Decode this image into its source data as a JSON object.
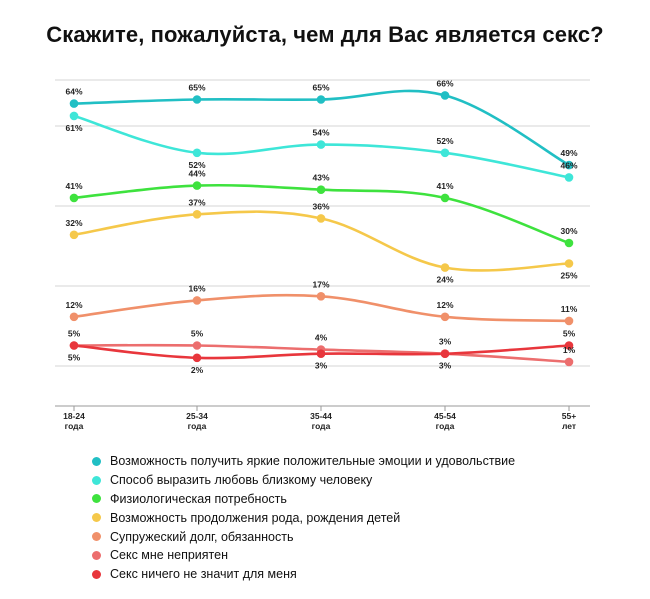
{
  "chart_data": {
    "type": "line",
    "title": "Скажите, пожалуйста, чем для Вас является секс?",
    "categories": [
      [
        "18-24",
        "года"
      ],
      [
        "25-34",
        "года"
      ],
      [
        "35-44",
        "года"
      ],
      [
        "45-54",
        "года"
      ],
      [
        "55+",
        "лет"
      ]
    ],
    "grid": true,
    "legend_position": "bottom",
    "series": [
      {
        "name": "Возможность получить яркие положительные эмоции и удовольствие",
        "color": "#21bfc4",
        "values": [
          64,
          65,
          65,
          66,
          49
        ],
        "labels": [
          "64%",
          "65%",
          "65%",
          "66%",
          "49%"
        ]
      },
      {
        "name": "Способ выразить любовь близкому человеку",
        "color": "#3ee6d8",
        "values": [
          61,
          52,
          54,
          52,
          46
        ],
        "labels": [
          "61%",
          "52%",
          "54%",
          "52%",
          "46%"
        ]
      },
      {
        "name": "Физиологическая потребность",
        "color": "#3ee23e",
        "values": [
          41,
          44,
          43,
          41,
          30
        ],
        "labels": [
          "41%",
          "44%",
          "43%",
          "41%",
          "30%"
        ]
      },
      {
        "name": "Возможность продолжения рода, рождения детей",
        "color": "#f5c84a",
        "values": [
          32,
          37,
          36,
          24,
          25
        ],
        "labels": [
          "32%",
          "37%",
          "36%",
          "24%",
          "25%"
        ]
      },
      {
        "name": "Супружеский долг, обязанность",
        "color": "#f0906a",
        "values": [
          12,
          16,
          17,
          12,
          11
        ],
        "labels": [
          "12%",
          "16%",
          "17%",
          "12%",
          "11%"
        ]
      },
      {
        "name": "Секс мне неприятен",
        "color": "#ec6e6e",
        "values": [
          5,
          5,
          4,
          3,
          1
        ],
        "labels": [
          "5%",
          "5%",
          "4%",
          "3%",
          "1%"
        ]
      },
      {
        "name": "Секс ничего не значит для меня",
        "color": "#e8363c",
        "values": [
          5,
          2,
          3,
          3,
          5
        ],
        "labels": [
          "5%",
          "2%",
          "3%",
          "3%",
          "5%"
        ]
      }
    ]
  }
}
